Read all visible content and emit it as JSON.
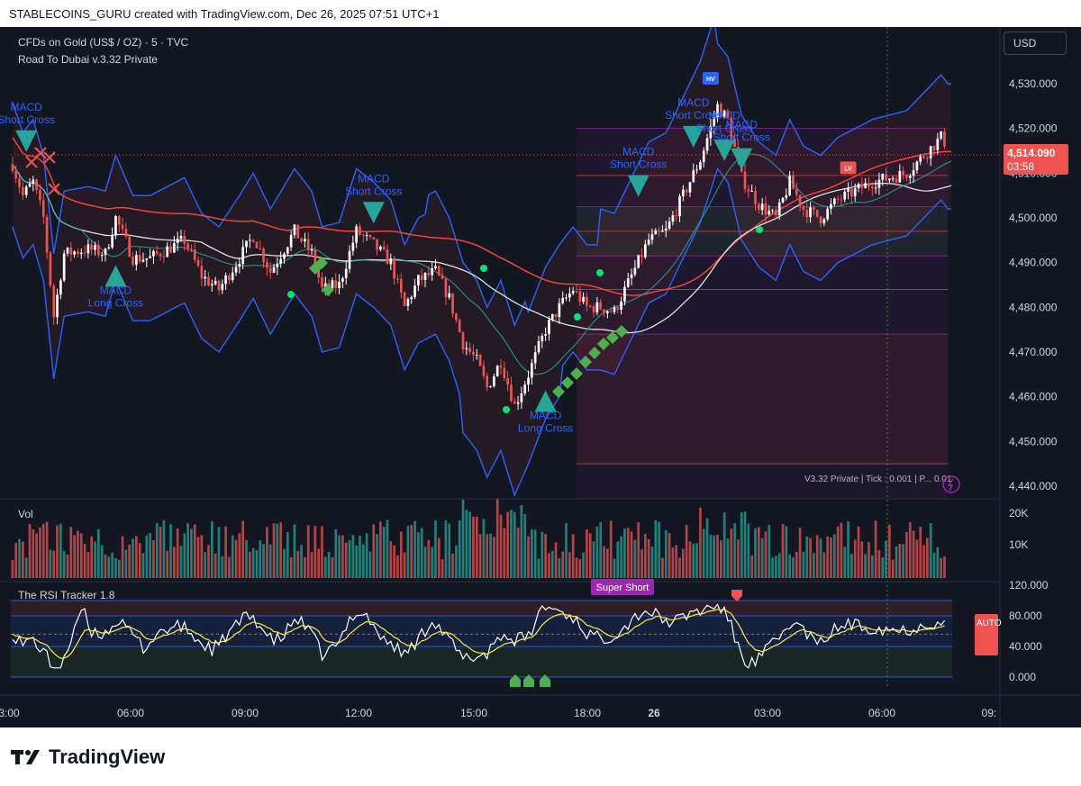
{
  "header": {
    "attribution": "STABLECOINS_GURU created with TradingView.com, Dec 26, 2025 07:51 UTC+1"
  },
  "legend": {
    "symbol": "CFDs on Gold (US$ / OZ) · 5 · TVC",
    "indicator": "Road To Dubai v.3.32 Private"
  },
  "currency_button": "USD",
  "price_tag": {
    "price": "4,514.090",
    "countdown": "03:58"
  },
  "footer_info": "V3.32 Private | Tick : 0.001 | P... 0.01",
  "vol_pane": {
    "title": "Vol"
  },
  "rsi_pane": {
    "title": "The RSI Tracker 1.8",
    "super_short": "Super Short",
    "auto_label": "AUTO"
  },
  "brand": "TradingView",
  "colors": {
    "bg": "#131722",
    "up": "#ffffff",
    "down": "#ef5350",
    "band": "#2962ff",
    "ma_red": "#f44336",
    "ma_white": "#e0e0e0",
    "ma_green": "#26a69a",
    "marker": "#26a69a",
    "diamond": "#4caf50",
    "text_blue": "#2962ff"
  },
  "chart_data": [
    {
      "type": "candlestick",
      "symbol": "CFDs on Gold (US$ / OZ)",
      "timeframe": "5",
      "ylim": [
        4437,
        4542
      ],
      "y_ticks": [
        "4,440.000",
        "4,450.000",
        "4,460.000",
        "4,470.000",
        "4,480.000",
        "4,490.000",
        "4,500.000",
        "4,510.000",
        "4,520.000",
        "4,530.000"
      ],
      "x_ticks": [
        "3:00",
        "06:00",
        "09:00",
        "12:00",
        "15:00",
        "18:00",
        "26",
        "03:00",
        "06:00",
        "09:"
      ],
      "anchors": [
        [
          0,
          4512
        ],
        [
          3,
          4505
        ],
        [
          6,
          4508
        ],
        [
          9,
          4500
        ],
        [
          12,
          4478
        ],
        [
          15,
          4492
        ],
        [
          22,
          4493
        ],
        [
          27,
          4492
        ],
        [
          30,
          4500
        ],
        [
          35,
          4491
        ],
        [
          40,
          4491
        ],
        [
          45,
          4493
        ],
        [
          50,
          4495
        ],
        [
          55,
          4487
        ],
        [
          60,
          4484
        ],
        [
          66,
          4491
        ],
        [
          70,
          4496
        ],
        [
          75,
          4488
        ],
        [
          82,
          4497
        ],
        [
          87,
          4492
        ],
        [
          90,
          4484
        ],
        [
          95,
          4485
        ],
        [
          100,
          4497
        ],
        [
          105,
          4494
        ],
        [
          110,
          4490
        ],
        [
          114,
          4480
        ],
        [
          118,
          4486
        ],
        [
          123,
          4488
        ],
        [
          127,
          4482
        ],
        [
          131,
          4472
        ],
        [
          135,
          4468
        ],
        [
          138,
          4462
        ],
        [
          142,
          4468
        ],
        [
          146,
          4458
        ],
        [
          150,
          4465
        ],
        [
          155,
          4475
        ],
        [
          159,
          4480
        ],
        [
          163,
          4484
        ],
        [
          167,
          4480
        ],
        [
          171,
          4480
        ],
        [
          175,
          4479
        ],
        [
          180,
          4487
        ],
        [
          185,
          4495
        ],
        [
          190,
          4497
        ],
        [
          195,
          4505
        ],
        [
          200,
          4513
        ],
        [
          205,
          4525
        ],
        [
          208,
          4522
        ],
        [
          212,
          4509
        ],
        [
          217,
          4503
        ],
        [
          222,
          4500
        ],
        [
          226,
          4508
        ],
        [
          230,
          4502
        ],
        [
          235,
          4500
        ],
        [
          240,
          4504
        ],
        [
          245,
          4506
        ],
        [
          250,
          4508
        ],
        [
          255,
          4509
        ],
        [
          260,
          4510
        ],
        [
          265,
          4514
        ],
        [
          270,
          4518
        ],
        [
          272,
          4516
        ]
      ],
      "annotations": [
        {
          "text": "MACD Short Cross",
          "x": 4,
          "y": 4524
        },
        {
          "text": "MACD Long Cross",
          "x": 30,
          "y": 4483
        },
        {
          "text": "MACD Short Cross",
          "x": 105,
          "y": 4508
        },
        {
          "text": "MACD Long Cross",
          "x": 155,
          "y": 4455
        },
        {
          "text": "MACD Short Cross",
          "x": 182,
          "y": 4514
        },
        {
          "text": "MACD Short Cross",
          "x": 198,
          "y": 4525
        },
        {
          "text": "MACD Short Cross",
          "x": 207,
          "y": 4522
        },
        {
          "text": "MACD Short Cross",
          "x": 212,
          "y": 4520
        }
      ],
      "badges": [
        {
          "text": "HV",
          "x": 203,
          "y": 4531
        },
        {
          "text": "LV",
          "x": 243,
          "y": 4511
        }
      ]
    },
    {
      "type": "bar",
      "title": "Vol",
      "y_ticks": [
        "20K",
        "10K"
      ]
    },
    {
      "type": "line",
      "title": "The RSI Tracker 1.8",
      "y_ticks": [
        "120.000",
        "80.000",
        "40.000",
        "0.000"
      ],
      "ylim": [
        0,
        120
      ],
      "levels": [
        100,
        80,
        40,
        0
      ]
    }
  ]
}
